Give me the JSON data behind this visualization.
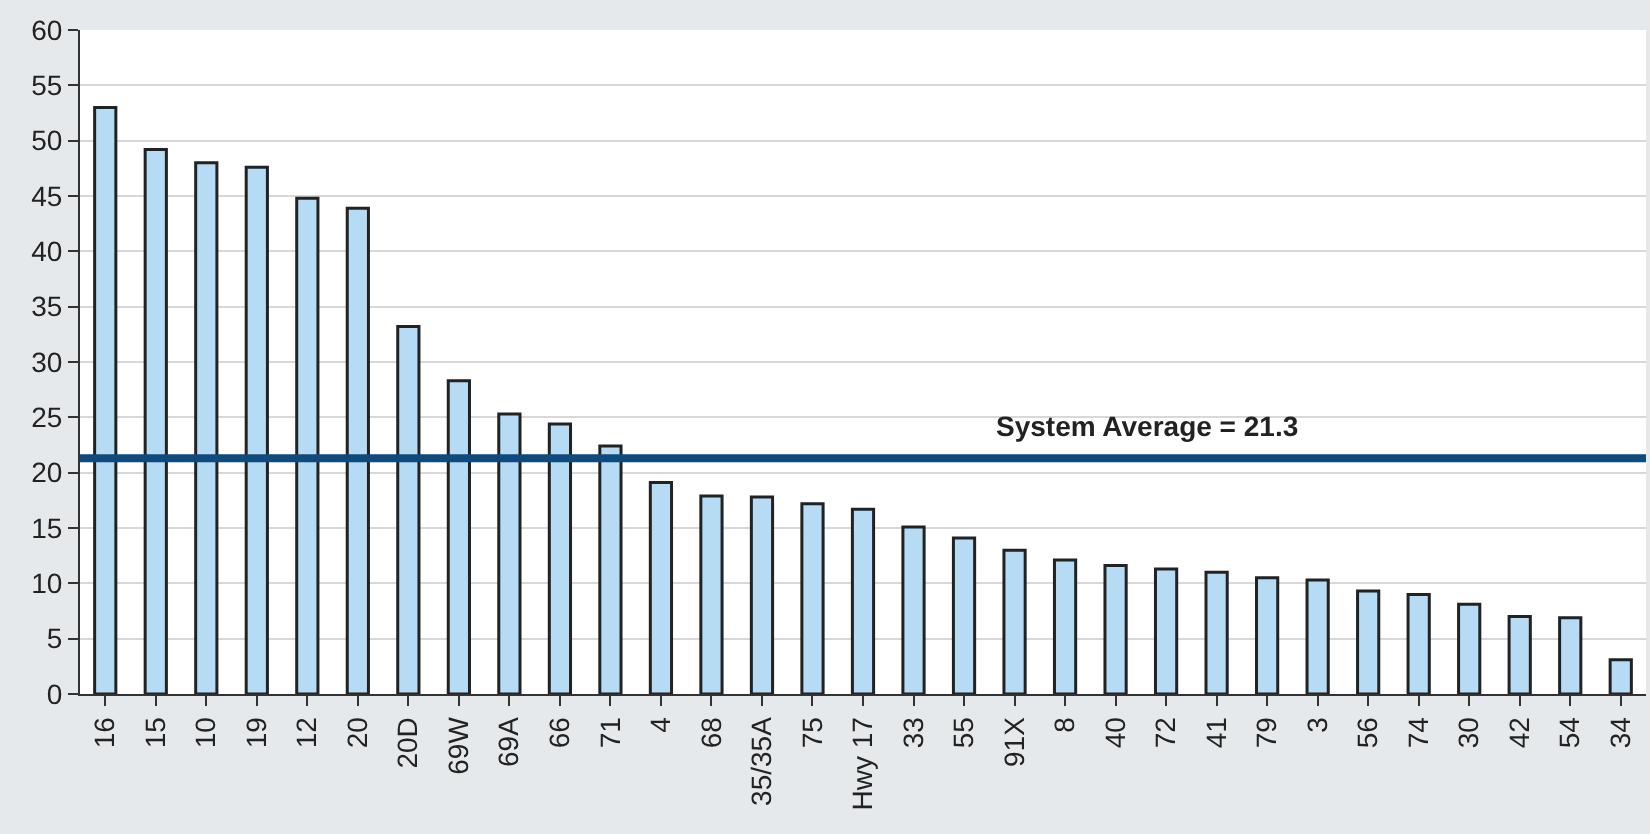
{
  "chart_data": {
    "type": "bar",
    "categories": [
      "16",
      "15",
      "10",
      "19",
      "12",
      "20",
      "20D",
      "69W",
      "69A",
      "66",
      "71",
      "4",
      "68",
      "35/35A",
      "75",
      "Hwy 17",
      "33",
      "55",
      "91X",
      "8",
      "40",
      "72",
      "41",
      "79",
      "3",
      "56",
      "74",
      "30",
      "42",
      "54",
      "34"
    ],
    "values": [
      53,
      49.2,
      48,
      47.6,
      44.8,
      43.9,
      33.2,
      28.3,
      25.3,
      24.4,
      22.4,
      19.1,
      17.9,
      17.8,
      17.2,
      16.7,
      15.1,
      14.1,
      13.0,
      12.1,
      11.6,
      11.3,
      11.0,
      10.5,
      10.3,
      9.3,
      9.0,
      8.1,
      7.0,
      6.9,
      3.1
    ],
    "color": "#b5dcf4",
    "ylim": [
      0,
      60
    ],
    "yticks": [
      0,
      5,
      10,
      15,
      20,
      25,
      30,
      35,
      40,
      45,
      50,
      55,
      60
    ],
    "grid": "y",
    "ref_lines": [
      {
        "axis": "y",
        "value": 21.3,
        "label": "System Average = 21.3",
        "color": "#0e4a7c"
      }
    ]
  }
}
